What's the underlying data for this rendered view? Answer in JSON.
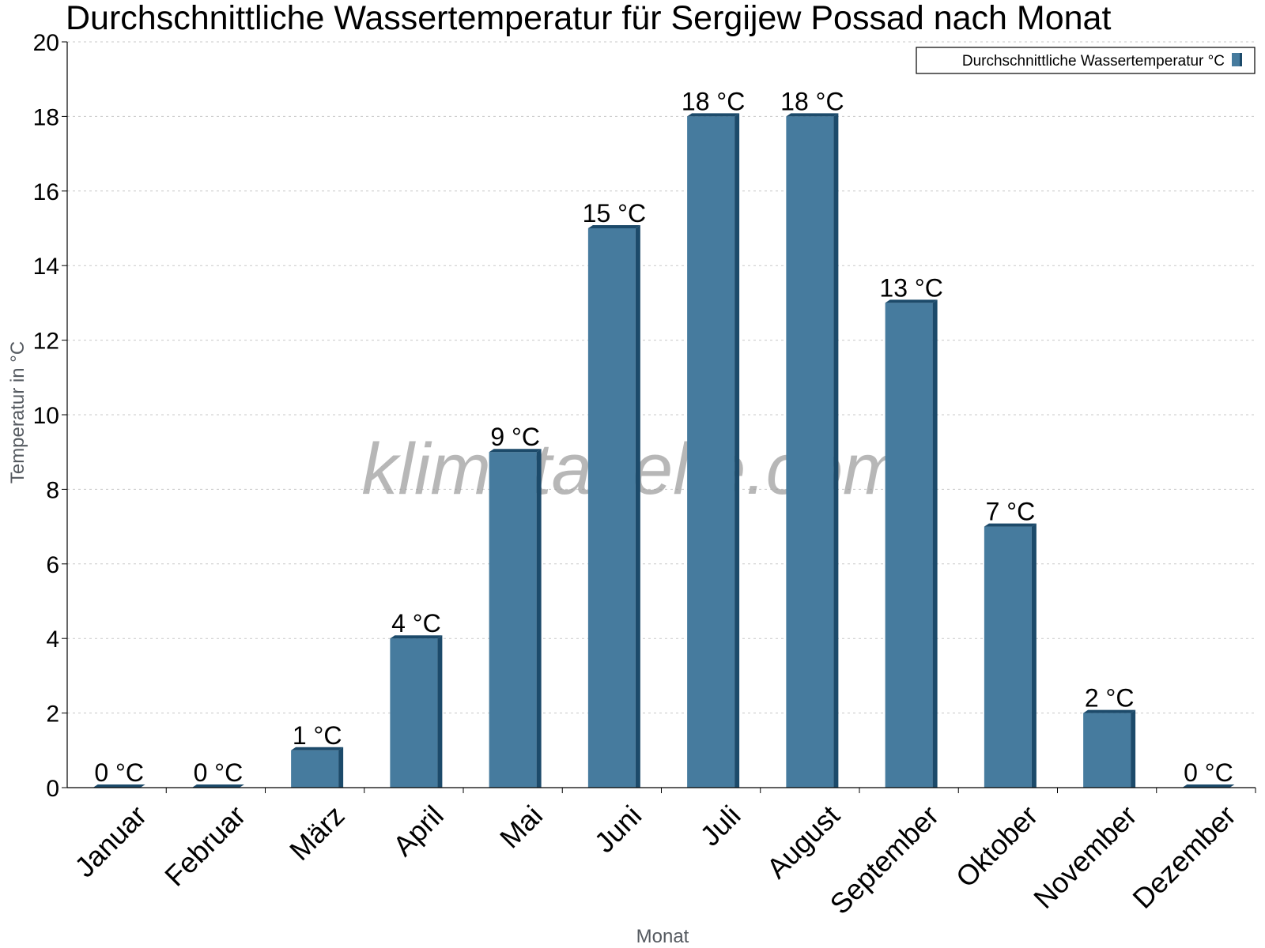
{
  "chart_data": {
    "type": "bar",
    "title": "Durchschnittliche Wassertemperatur für Sergijew Possad nach Monat",
    "xlabel": "Monat",
    "ylabel": "Temperatur in °C",
    "categories": [
      "Januar",
      "Februar",
      "März",
      "April",
      "Mai",
      "Juni",
      "Juli",
      "August",
      "September",
      "Oktober",
      "November",
      "Dezember"
    ],
    "series": [
      {
        "name": "Durchschnittliche Wassertemperatur °C",
        "values": [
          0,
          0,
          1,
          4,
          9,
          15,
          18,
          18,
          13,
          7,
          2,
          0
        ],
        "labels": [
          "0 °C",
          "0 °C",
          "1 °C",
          "4 °C",
          "9 °C",
          "15 °C",
          "18 °C",
          "18 °C",
          "13 °C",
          "7 °C",
          "2 °C",
          "0 °C"
        ],
        "color": "#467b9e",
        "edge_color": "#1c4a6a"
      }
    ],
    "ylim": [
      0,
      20
    ],
    "yticks": [
      0,
      2,
      4,
      6,
      8,
      10,
      12,
      14,
      16,
      18,
      20
    ],
    "grid": true,
    "legend_position": "top-right",
    "watermark": "klimatabelle.com"
  }
}
